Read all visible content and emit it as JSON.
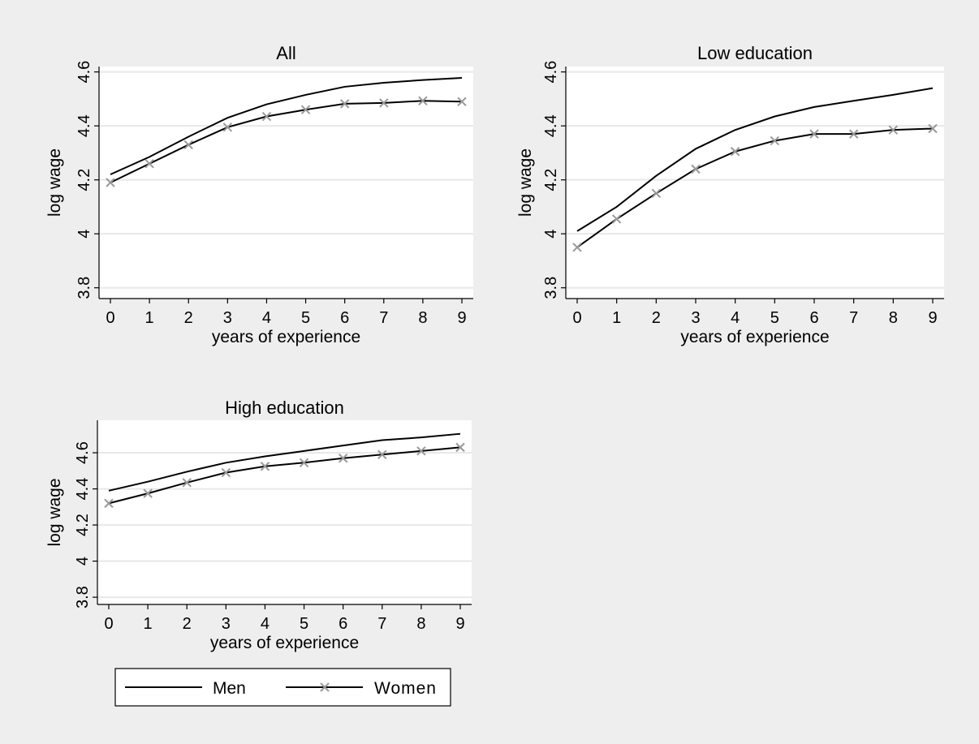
{
  "chart_data": [
    {
      "type": "line",
      "title": "All",
      "xlabel": "years of experience",
      "ylabel": "log wage",
      "x": [
        0,
        1,
        2,
        3,
        4,
        5,
        6,
        7,
        8,
        9
      ],
      "xlim": [
        0,
        9
      ],
      "ylim": [
        3.76,
        4.62
      ],
      "yticks": [
        3.8,
        4,
        4.2,
        4.4,
        4.6
      ],
      "grid": true,
      "series": [
        {
          "name": "Men",
          "values": [
            4.22,
            4.285,
            4.36,
            4.43,
            4.48,
            4.515,
            4.545,
            4.56,
            4.57,
            4.578
          ]
        },
        {
          "name": "Women",
          "values": [
            4.19,
            4.26,
            4.33,
            4.395,
            4.435,
            4.46,
            4.482,
            4.485,
            4.493,
            4.49
          ]
        }
      ]
    },
    {
      "type": "line",
      "title": "Low education",
      "xlabel": "years of experience",
      "ylabel": "log wage",
      "x": [
        0,
        1,
        2,
        3,
        4,
        5,
        6,
        7,
        8,
        9
      ],
      "xlim": [
        0,
        9
      ],
      "ylim": [
        3.76,
        4.62
      ],
      "yticks": [
        3.8,
        4,
        4.2,
        4.4,
        4.6
      ],
      "grid": true,
      "series": [
        {
          "name": "Men",
          "values": [
            4.01,
            4.1,
            4.215,
            4.315,
            4.385,
            4.435,
            4.47,
            4.493,
            4.515,
            4.54
          ]
        },
        {
          "name": "Women",
          "values": [
            3.95,
            4.055,
            4.15,
            4.24,
            4.305,
            4.345,
            4.37,
            4.37,
            4.385,
            4.39
          ]
        }
      ]
    },
    {
      "type": "line",
      "title": "High education",
      "xlabel": "years of experience",
      "ylabel": "log wage",
      "x": [
        0,
        1,
        2,
        3,
        4,
        5,
        6,
        7,
        8,
        9
      ],
      "xlim": [
        0,
        9
      ],
      "ylim": [
        3.76,
        4.78
      ],
      "yticks": [
        3.8,
        4,
        4.2,
        4.4,
        4.6
      ],
      "grid": true,
      "series": [
        {
          "name": "Men",
          "values": [
            4.39,
            4.44,
            4.495,
            4.545,
            4.58,
            4.61,
            4.64,
            4.67,
            4.685,
            4.705
          ]
        },
        {
          "name": "Women",
          "values": [
            4.32,
            4.375,
            4.435,
            4.49,
            4.525,
            4.545,
            4.57,
            4.59,
            4.61,
            4.63
          ]
        }
      ]
    }
  ],
  "legend": {
    "position": "bottom-left",
    "items": [
      {
        "label": "Men",
        "marker": "none"
      },
      {
        "label": "Women",
        "marker": "x"
      }
    ]
  },
  "colors": {
    "background": "#eeeeee",
    "plot_area": "#ffffff",
    "grid": "#e8e8e8",
    "line": "#000000",
    "marker": "#999999"
  }
}
